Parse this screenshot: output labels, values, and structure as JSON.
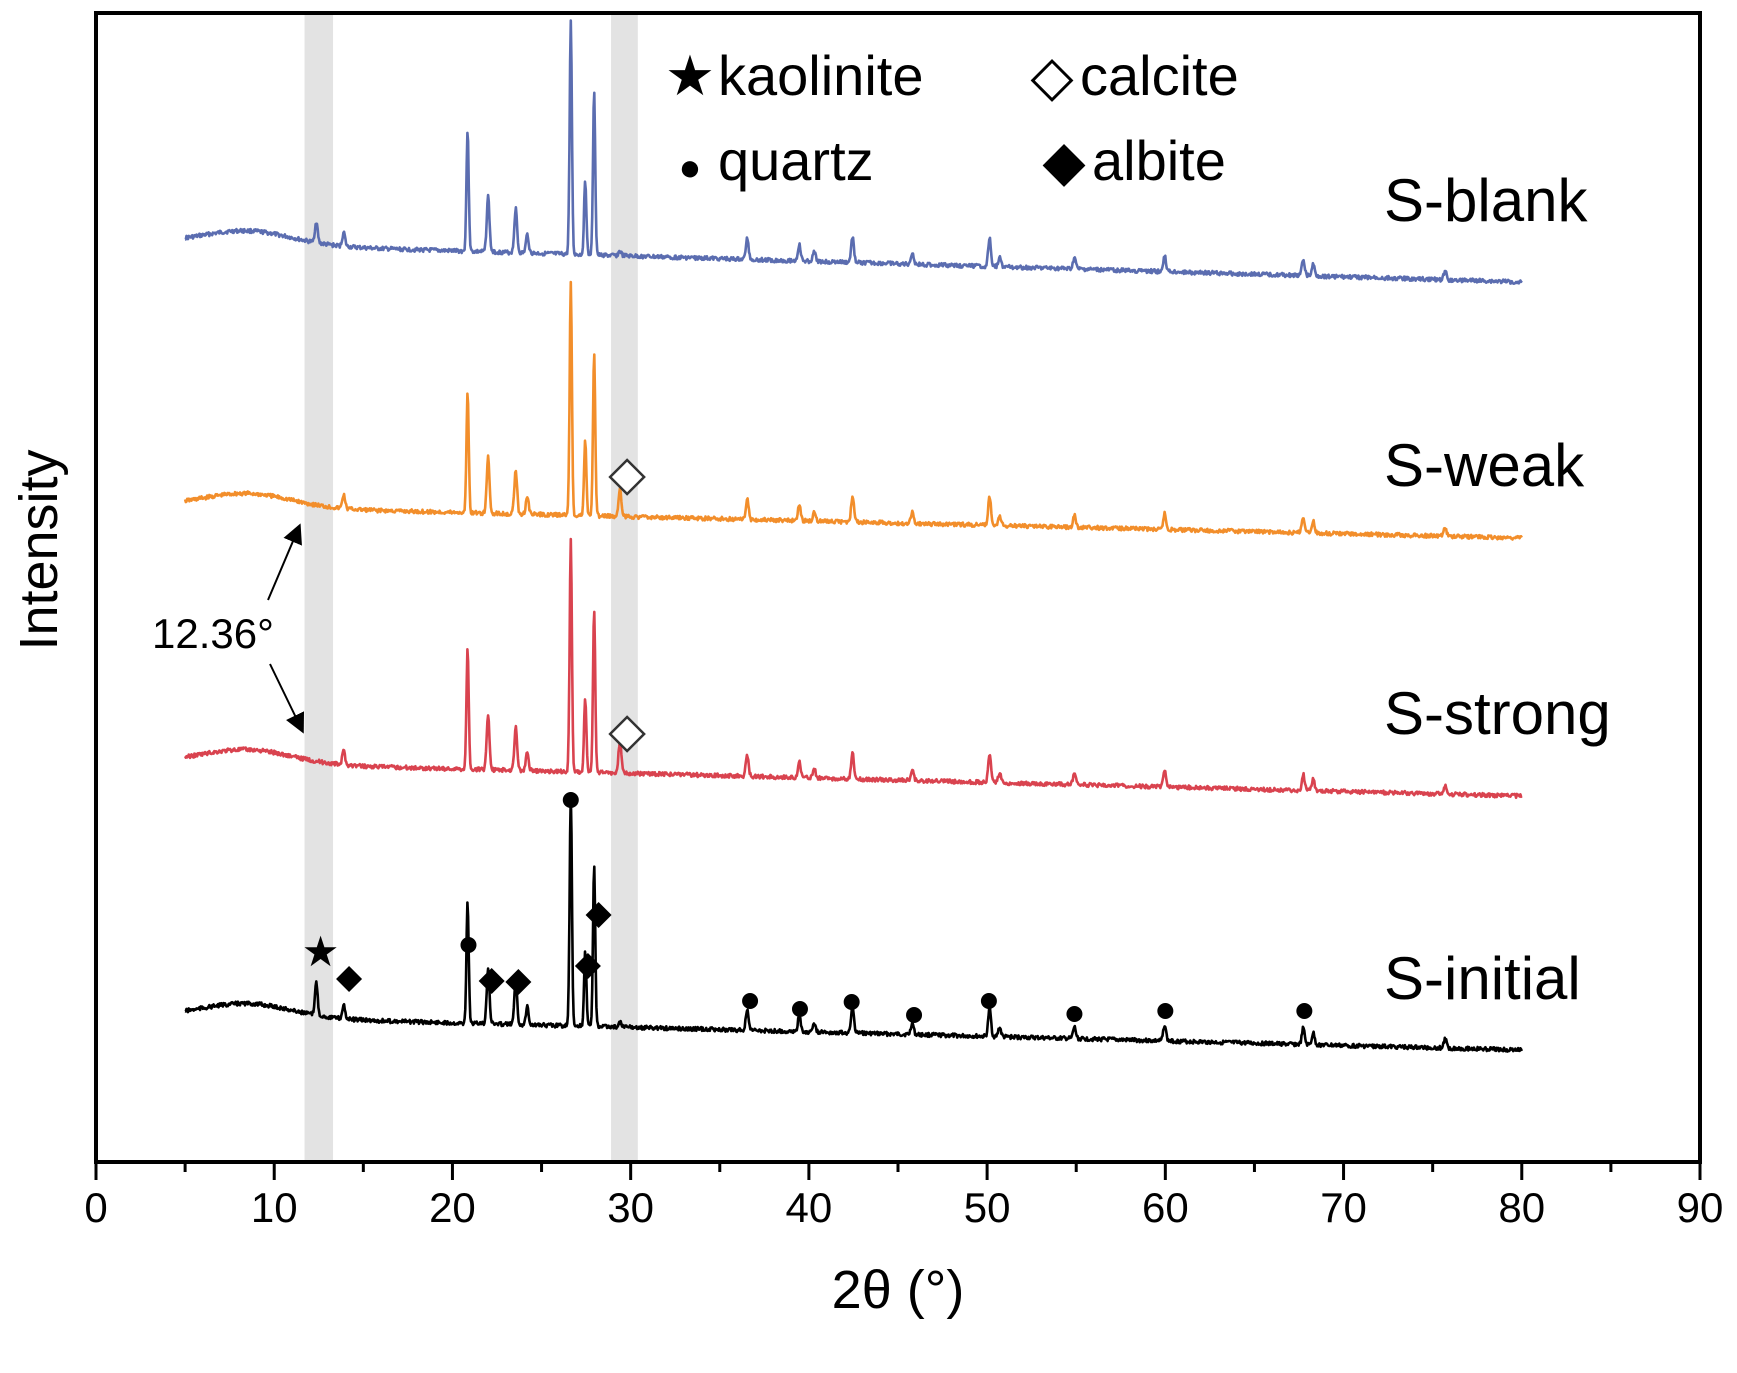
{
  "chart_data": {
    "type": "line",
    "title": "",
    "xlabel": "2θ (°)",
    "ylabel": "Intensity",
    "xlim": [
      0,
      90
    ],
    "x_ticks": [
      0,
      10,
      20,
      30,
      40,
      50,
      60,
      70,
      80,
      90
    ],
    "x_tick_labels": [
      "0",
      "10",
      "20",
      "30",
      "40",
      "50",
      "60",
      "70",
      "80",
      "90"
    ],
    "grid": false,
    "x_range_measured": [
      5,
      80
    ],
    "shaded_bands": [
      {
        "label": "kaolinite",
        "x_from": 11.7,
        "x_to": 13.3
      },
      {
        "label": "calcite",
        "x_from": 28.9,
        "x_to": 30.4
      }
    ],
    "peaks": [
      {
        "x": 12.36,
        "h": 0.09,
        "label": "kaolinite"
      },
      {
        "x": 13.9,
        "h": 0.06
      },
      {
        "x": 20.85,
        "h": 0.52
      },
      {
        "x": 22.0,
        "h": 0.24
      },
      {
        "x": 23.55,
        "h": 0.19
      },
      {
        "x": 24.2,
        "h": 0.08
      },
      {
        "x": 26.64,
        "h": 1.0
      },
      {
        "x": 27.45,
        "h": 0.32
      },
      {
        "x": 27.95,
        "h": 0.7
      },
      {
        "x": 29.4,
        "h": 0.02,
        "label": "calcite"
      },
      {
        "x": 36.54,
        "h": 0.09
      },
      {
        "x": 39.46,
        "h": 0.07
      },
      {
        "x": 40.3,
        "h": 0.04
      },
      {
        "x": 42.45,
        "h": 0.11
      },
      {
        "x": 45.8,
        "h": 0.05
      },
      {
        "x": 50.14,
        "h": 0.12
      },
      {
        "x": 50.7,
        "h": 0.04
      },
      {
        "x": 54.9,
        "h": 0.05
      },
      {
        "x": 59.96,
        "h": 0.07
      },
      {
        "x": 67.74,
        "h": 0.07
      },
      {
        "x": 68.3,
        "h": 0.05
      },
      {
        "x": 75.7,
        "h": 0.04
      }
    ],
    "series": [
      {
        "name": "S-blank",
        "color": "#5b6db0",
        "calcite_peak": 0.02,
        "kaolinite_peak": 0.09
      },
      {
        "name": "S-weak",
        "color": "#f28e2b",
        "calcite_peak": 0.12,
        "kaolinite_peak": 0.0
      },
      {
        "name": "S-strong",
        "color": "#d9434f",
        "calcite_peak": 0.14,
        "kaolinite_peak": 0.0
      },
      {
        "name": "S-initial",
        "color": "#000000",
        "calcite_peak": 0.02,
        "kaolinite_peak": 0.14
      }
    ],
    "legend": {
      "placement": "top-center",
      "entries": [
        {
          "symbol": "★",
          "label": "kaolinite"
        },
        {
          "symbol": "◇",
          "label": "calcite"
        },
        {
          "symbol": "●",
          "label": "quartz"
        },
        {
          "symbol": "◆",
          "label": "albite"
        }
      ]
    },
    "annotations": {
      "angle_label": "12.36°",
      "quartz_markers_x": [
        20.9,
        26.64,
        36.7,
        39.5,
        42.4,
        45.9,
        50.1,
        54.9,
        60.0,
        67.8
      ],
      "albite_markers_x": [
        14.2,
        22.2,
        23.7,
        27.6,
        28.2
      ],
      "kaolinite_marker_x": [
        12.6
      ],
      "calcite_marker_x": [
        29.8
      ]
    }
  }
}
